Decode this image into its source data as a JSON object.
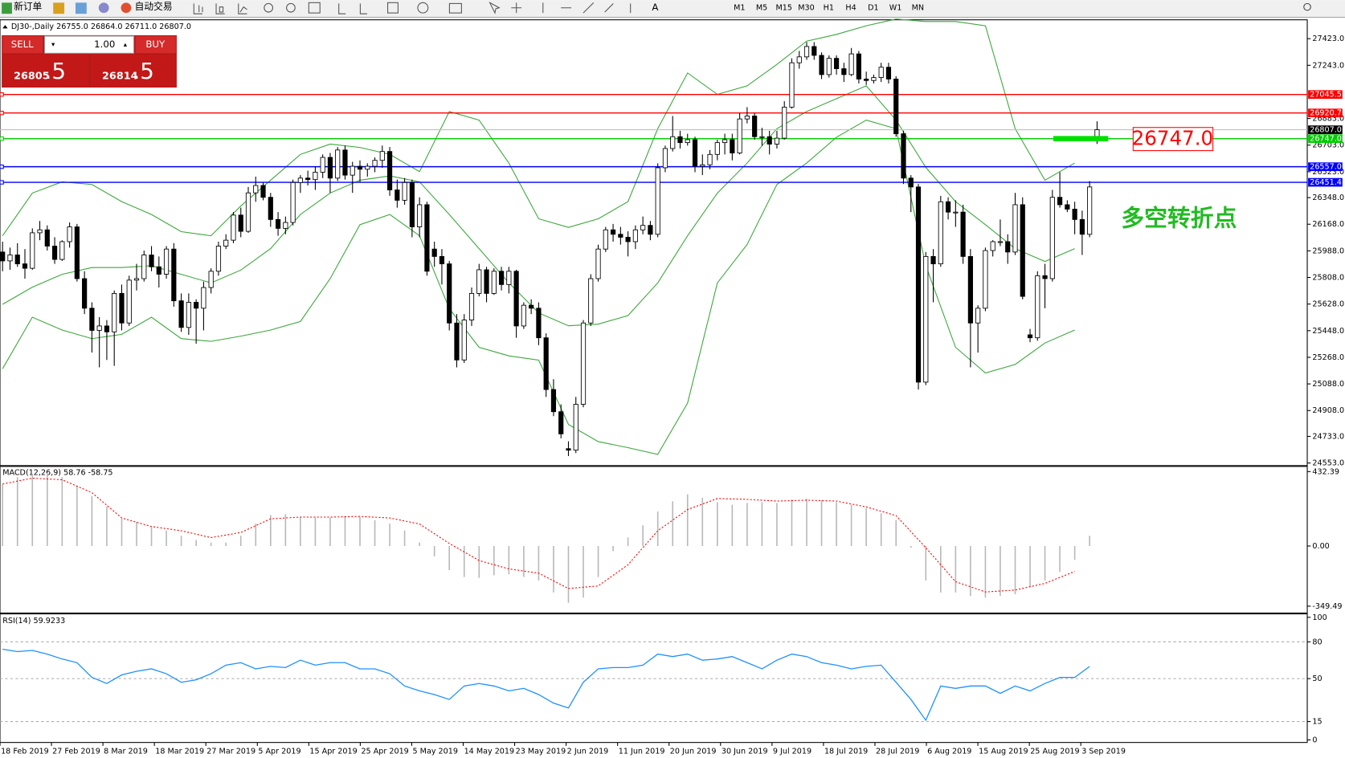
{
  "toolbar": {
    "new_order": "新订单",
    "auto_trading": "自动交易",
    "timeframes": [
      "M1",
      "M5",
      "M15",
      "M30",
      "H1",
      "H4",
      "D1",
      "W1",
      "MN"
    ]
  },
  "trade_panel": {
    "sell": "SELL",
    "buy": "BUY",
    "lot": "1.00",
    "bid": "26805",
    "bid_pip": ".5",
    "ask": "26814",
    "ask_pip": ".5"
  },
  "chart_data": {
    "type": "candlestick",
    "title": "DJ30-,Daily 26755.0 26864.0 26711.0 26807.0",
    "date_labels": [
      "18 Feb 2019",
      "27 Feb 2019",
      "8 Mar 2019",
      "18 Mar 2019",
      "27 Mar 2019",
      "5 Apr 2019",
      "15 Apr 2019",
      "25 Apr 2019",
      "5 May 2019",
      "14 May 2019",
      "23 May 2019",
      "2 Jun 2019",
      "11 Jun 2019",
      "20 Jun 2019",
      "30 Jun 2019",
      "9 Jul 2019",
      "18 Jul 2019",
      "28 Jul 2019",
      "6 Aug 2019",
      "15 Aug 2019",
      "25 Aug 2019",
      "3 Sep 2019"
    ],
    "ohlc": [
      [
        25980,
        26050,
        25850,
        25920
      ],
      [
        25920,
        26010,
        25860,
        25960
      ],
      [
        25960,
        26040,
        25880,
        25900
      ],
      [
        25900,
        26000,
        25800,
        25870
      ],
      [
        25870,
        26140,
        25860,
        26110
      ],
      [
        26110,
        26190,
        26060,
        26130
      ],
      [
        26130,
        26160,
        25990,
        26020
      ],
      [
        26020,
        26080,
        25900,
        25930
      ],
      [
        25930,
        26060,
        25920,
        26050
      ],
      [
        26050,
        26180,
        26010,
        26150
      ],
      [
        26150,
        26170,
        25780,
        25800
      ],
      [
        25800,
        25850,
        25560,
        25600
      ],
      [
        25600,
        25640,
        25300,
        25450
      ],
      [
        25450,
        25540,
        25200,
        25480
      ],
      [
        25480,
        25520,
        25250,
        25440
      ],
      [
        25440,
        25720,
        25210,
        25700
      ],
      [
        25700,
        25760,
        25450,
        25500
      ],
      [
        25500,
        25820,
        25480,
        25790
      ],
      [
        25790,
        25900,
        25720,
        25800
      ],
      [
        25800,
        25990,
        25780,
        25960
      ],
      [
        25960,
        26020,
        25850,
        25880
      ],
      [
        25880,
        25950,
        25740,
        25830
      ],
      [
        25830,
        26020,
        25800,
        26000
      ],
      [
        26000,
        26040,
        25610,
        25650
      ],
      [
        25650,
        25700,
        25440,
        25470
      ],
      [
        25470,
        25700,
        25420,
        25640
      ],
      [
        25640,
        25660,
        25360,
        25600
      ],
      [
        25600,
        25780,
        25450,
        25740
      ],
      [
        25740,
        25870,
        25700,
        25850
      ],
      [
        25850,
        26050,
        25820,
        26020
      ],
      [
        26020,
        26100,
        26000,
        26060
      ],
      [
        26060,
        26250,
        26040,
        26230
      ],
      [
        26230,
        26280,
        26080,
        26120
      ],
      [
        26120,
        26420,
        26110,
        26380
      ],
      [
        26380,
        26490,
        26320,
        26430
      ],
      [
        26430,
        26450,
        26330,
        26350
      ],
      [
        26350,
        26380,
        26150,
        26200
      ],
      [
        26200,
        26250,
        26090,
        26140
      ],
      [
        26140,
        26220,
        26100,
        26180
      ],
      [
        26180,
        26470,
        26160,
        26450
      ],
      [
        26450,
        26500,
        26380,
        26480
      ],
      [
        26480,
        26530,
        26430,
        26470
      ],
      [
        26470,
        26560,
        26400,
        26520
      ],
      [
        26520,
        26640,
        26480,
        26620
      ],
      [
        26620,
        26650,
        26380,
        26480
      ],
      [
        26480,
        26690,
        26460,
        26670
      ],
      [
        26670,
        26700,
        26470,
        26500
      ],
      [
        26500,
        26590,
        26380,
        26560
      ],
      [
        26560,
        26600,
        26450,
        26540
      ],
      [
        26540,
        26580,
        26490,
        26560
      ],
      [
        26560,
        26620,
        26520,
        26600
      ],
      [
        26600,
        26700,
        26550,
        26660
      ],
      [
        26660,
        26690,
        26360,
        26400
      ],
      [
        26400,
        26470,
        26280,
        26330
      ],
      [
        26330,
        26480,
        26300,
        26450
      ],
      [
        26450,
        26470,
        26080,
        26150
      ],
      [
        26150,
        26350,
        26080,
        26300
      ],
      [
        26300,
        26320,
        25820,
        25850
      ],
      [
        26000,
        26050,
        25880,
        25950
      ],
      [
        25950,
        26000,
        25760,
        25900
      ],
      [
        25900,
        25920,
        25450,
        25500
      ],
      [
        25500,
        25560,
        25200,
        25250
      ],
      [
        25250,
        25560,
        25230,
        25520
      ],
      [
        25520,
        25740,
        25480,
        25700
      ],
      [
        25700,
        25900,
        25680,
        25860
      ],
      [
        25860,
        25880,
        25640,
        25700
      ],
      [
        25700,
        25870,
        25690,
        25850
      ],
      [
        25850,
        25880,
        25720,
        25760
      ],
      [
        25760,
        25880,
        25700,
        25850
      ],
      [
        25850,
        25860,
        25400,
        25480
      ],
      [
        25480,
        25640,
        25460,
        25620
      ],
      [
        25620,
        25660,
        25560,
        25600
      ],
      [
        25600,
        25640,
        25350,
        25400
      ],
      [
        25400,
        25430,
        25000,
        25050
      ],
      [
        25050,
        25120,
        24870,
        24900
      ],
      [
        24900,
        24950,
        24720,
        24750
      ],
      [
        24650,
        24700,
        24600,
        24640
      ],
      [
        24640,
        25000,
        24620,
        24950
      ],
      [
        24950,
        25520,
        24930,
        25500
      ],
      [
        25500,
        25830,
        25480,
        25800
      ],
      [
        25800,
        26030,
        25780,
        26000
      ],
      [
        26000,
        26150,
        25980,
        26130
      ],
      [
        26130,
        26170,
        26050,
        26100
      ],
      [
        26100,
        26150,
        26030,
        26080
      ],
      [
        26080,
        26120,
        25950,
        26050
      ],
      [
        26050,
        26160,
        26000,
        26130
      ],
      [
        26130,
        26220,
        26100,
        26160
      ],
      [
        26160,
        26190,
        26060,
        26100
      ],
      [
        26100,
        26580,
        26080,
        26550
      ],
      [
        26550,
        26700,
        26520,
        26680
      ],
      [
        26680,
        26900,
        26660,
        26760
      ],
      [
        26760,
        26800,
        26680,
        26720
      ],
      [
        26720,
        26780,
        26700,
        26740
      ],
      [
        26740,
        26760,
        26520,
        26560
      ],
      [
        26560,
        26640,
        26500,
        26570
      ],
      [
        26570,
        26670,
        26540,
        26640
      ],
      [
        26640,
        26740,
        26600,
        26720
      ],
      [
        26720,
        26780,
        26640,
        26740
      ],
      [
        26740,
        26780,
        26600,
        26650
      ],
      [
        26650,
        26920,
        26640,
        26880
      ],
      [
        26880,
        26960,
        26850,
        26900
      ],
      [
        26900,
        26920,
        26740,
        26760
      ],
      [
        26760,
        26820,
        26700,
        26760
      ],
      [
        26760,
        26800,
        26640,
        26710
      ],
      [
        26710,
        26800,
        26680,
        26750
      ],
      [
        26750,
        27000,
        26740,
        26960
      ],
      [
        26960,
        27290,
        26950,
        27260
      ],
      [
        27260,
        27340,
        27220,
        27300
      ],
      [
        27300,
        27400,
        27280,
        27370
      ],
      [
        27370,
        27400,
        27280,
        27310
      ],
      [
        27310,
        27330,
        27150,
        27180
      ],
      [
        27180,
        27310,
        27160,
        27290
      ],
      [
        27290,
        27310,
        27180,
        27220
      ],
      [
        27220,
        27260,
        27130,
        27180
      ],
      [
        27180,
        27360,
        27170,
        27320
      ],
      [
        27320,
        27340,
        27120,
        27150
      ],
      [
        27150,
        27200,
        27110,
        27140
      ],
      [
        27140,
        27180,
        27120,
        27160
      ],
      [
        27160,
        27260,
        27130,
        27230
      ],
      [
        27230,
        27260,
        27120,
        27150
      ],
      [
        27150,
        27170,
        26760,
        26780
      ],
      [
        26780,
        26800,
        26440,
        26480
      ],
      [
        26480,
        26500,
        26250,
        26420
      ],
      [
        26420,
        26440,
        25050,
        25100
      ],
      [
        25100,
        25980,
        25080,
        25950
      ],
      [
        25950,
        26000,
        25640,
        25900
      ],
      [
        25900,
        26360,
        25880,
        26320
      ],
      [
        26320,
        26350,
        26200,
        26250
      ],
      [
        26250,
        26330,
        26150,
        26250
      ],
      [
        26250,
        26300,
        25900,
        25950
      ],
      [
        25950,
        26000,
        25200,
        25500
      ],
      [
        25500,
        25620,
        25300,
        25600
      ],
      [
        25600,
        26010,
        25580,
        25990
      ],
      [
        25990,
        26060,
        25950,
        26050
      ],
      [
        26050,
        26200,
        26020,
        26050
      ],
      [
        26050,
        26100,
        25900,
        25980
      ],
      [
        25980,
        26380,
        25960,
        26300
      ],
      [
        26300,
        26350,
        25660,
        25680
      ],
      [
        25420,
        25460,
        25370,
        25400
      ],
      [
        25400,
        25850,
        25380,
        25820
      ],
      [
        25820,
        25900,
        25600,
        25800
      ],
      [
        25800,
        26400,
        25780,
        26350
      ],
      [
        26350,
        26520,
        26280,
        26300
      ],
      [
        26300,
        26330,
        26250,
        26270
      ],
      [
        26270,
        26320,
        26100,
        26200
      ],
      [
        26200,
        26260,
        25960,
        26100
      ],
      [
        26100,
        26460,
        26080,
        26420
      ],
      [
        26755,
        26864,
        26711,
        26807
      ]
    ],
    "bands": {
      "color": "#3aa63a",
      "upper": [
        26090,
        26379,
        26455,
        26437,
        26321,
        26234,
        26118,
        26090,
        26292,
        26466,
        26640,
        26710,
        26687,
        26640,
        26524,
        26930,
        26872,
        26582,
        26205,
        26147,
        26205,
        26321,
        26814,
        27191,
        27046,
        27104,
        27249,
        27406,
        27452,
        27510,
        27556,
        27539,
        27539,
        27510,
        26814,
        26466,
        26582
      ],
      "middle": [
        25626,
        25742,
        25829,
        25875,
        25875,
        25887,
        25829,
        25771,
        25858,
        26003,
        26234,
        26379,
        26466,
        26495,
        26455,
        26234,
        26003,
        25771,
        25568,
        25481,
        25492,
        25550,
        25771,
        26090,
        26379,
        26582,
        26814,
        26930,
        27017,
        27104,
        26872,
        26553,
        26321,
        26165,
        26003,
        25916,
        26003
      ],
      "lower": [
        25191,
        25539,
        25452,
        25394,
        25423,
        25539,
        25394,
        25376,
        25411,
        25452,
        25510,
        25800,
        26165,
        26234,
        26090,
        25597,
        25336,
        25278,
        25249,
        24814,
        24698,
        24657,
        24611,
        24959,
        25771,
        26031,
        26437,
        26582,
        26756,
        26872,
        26814,
        25887,
        25336,
        25162,
        25220,
        25365,
        25452
      ]
    },
    "ylim": [
      24553,
      27423
    ],
    "yticks": [
      {
        "value": 24553,
        "label": "24553.0"
      },
      {
        "value": 24733,
        "label": "24733.0"
      },
      {
        "value": 24908,
        "label": "24908.0"
      },
      {
        "value": 25088,
        "label": "25088.0"
      },
      {
        "value": 25268,
        "label": "25268.0"
      },
      {
        "value": 25448,
        "label": "25448.0"
      },
      {
        "value": 25628,
        "label": "25628.0"
      },
      {
        "value": 25808,
        "label": "25808.0"
      },
      {
        "value": 25988,
        "label": "25988.0"
      },
      {
        "value": 26168,
        "label": "26168.0"
      },
      {
        "value": 26348,
        "label": "26348.0"
      },
      {
        "value": 26523,
        "label": "26523.0"
      },
      {
        "value": 26703,
        "label": "26703.0"
      },
      {
        "value": 26883,
        "label": "26883.0"
      },
      {
        "value": 27243,
        "label": "27243.0"
      },
      {
        "value": 27423,
        "label": "27423.0"
      }
    ],
    "hlines": [
      {
        "value": 27045.5,
        "label": "27045.5",
        "color": "#ff0000"
      },
      {
        "value": 26920.7,
        "label": "26920.7",
        "color": "#ff0000"
      },
      {
        "value": 26747,
        "label": "26747.0",
        "color": "#00cc00"
      },
      {
        "value": 26557,
        "label": "26557.0",
        "color": "#0000ff"
      },
      {
        "value": 26451.4,
        "label": "26451.4",
        "color": "#0000ff"
      }
    ],
    "current": {
      "value": 26807,
      "label": "26807.0"
    },
    "annotations": {
      "price_box": "26747.0",
      "note": "多空转折点"
    },
    "macd": {
      "title": "MACD(12,26,9) 58.76 -58.75",
      "ylim": [
        -349.49,
        432.39
      ],
      "yticks": [
        -349.49,
        {
          "value": 0,
          "label": "0.00"
        },
        432.39
      ],
      "histogram": [
        360,
        400,
        420,
        425,
        400,
        350,
        290,
        230,
        160,
        140,
        110,
        90,
        60,
        35,
        20,
        20,
        60,
        130,
        180,
        185,
        170,
        165,
        165,
        175,
        170,
        150,
        130,
        90,
        20,
        -60,
        -140,
        -180,
        -185,
        -170,
        -165,
        -180,
        -200,
        -270,
        -330,
        -300,
        -180,
        -30,
        50,
        120,
        200,
        260,
        300,
        280,
        255,
        240,
        250,
        255,
        250,
        270,
        275,
        265,
        255,
        240,
        220,
        190,
        150,
        -10,
        -200,
        -270,
        -270,
        -290,
        -300,
        -290,
        -280,
        -240,
        -200,
        -150,
        -80,
        60
      ],
      "signal": [
        360,
        394,
        385,
        310,
        163,
        113,
        89,
        49,
        79,
        158,
        168,
        168,
        172,
        163,
        128,
        15,
        -84,
        -133,
        -158,
        -247,
        -232,
        -109,
        89,
        212,
        276,
        271,
        261,
        266,
        261,
        227,
        177,
        -10,
        -207,
        -267,
        -256,
        -217,
        -148
      ]
    },
    "rsi": {
      "title": "RSI(14) 59.9233",
      "ylim": [
        0,
        100
      ],
      "yticks": [
        0,
        15,
        50,
        80,
        100
      ],
      "values": [
        74,
        72,
        73,
        70,
        66,
        63,
        51,
        46,
        53,
        56,
        58,
        54,
        47,
        49,
        54,
        61,
        63,
        58,
        60,
        59,
        65,
        61,
        63,
        63,
        58,
        58,
        54,
        44,
        40,
        37,
        33,
        44,
        46,
        44,
        40,
        42,
        37,
        30,
        26,
        47,
        58,
        59,
        59,
        61,
        70,
        68,
        70,
        65,
        66,
        68,
        63,
        58,
        65,
        70,
        68,
        63,
        61,
        58,
        60,
        61,
        47,
        33,
        16,
        44,
        42,
        44,
        44,
        38,
        44,
        40,
        46,
        51,
        51,
        59.92
      ]
    }
  }
}
